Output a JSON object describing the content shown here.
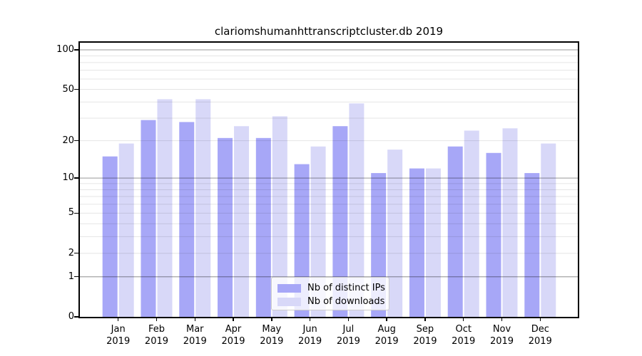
{
  "title": "clariomshumanhttranscriptcluster.db 2019",
  "chart_data": {
    "type": "bar",
    "title": "clariomshumanhttranscriptcluster.db 2019",
    "categories": [
      "Jan",
      "Feb",
      "Mar",
      "Apr",
      "May",
      "Jun",
      "Jul",
      "Aug",
      "Sep",
      "Oct",
      "Nov",
      "Dec"
    ],
    "year_label": "2019",
    "series": [
      {
        "name": "Nb of distinct IPs",
        "color": "#a7a7f7",
        "values": [
          15,
          29,
          28,
          21,
          21,
          13,
          26,
          11,
          12,
          18,
          16,
          11
        ]
      },
      {
        "name": "Nb of downloads",
        "color": "#d8d8f8",
        "values": [
          19,
          42,
          42,
          26,
          31,
          18,
          39,
          17,
          12,
          24,
          25,
          19
        ]
      }
    ],
    "yscale": "log10(1+y)",
    "yticks": [
      0,
      1,
      2,
      5,
      10,
      20,
      50,
      100
    ],
    "minor_gridlines": [
      2,
      3,
      4,
      5,
      6,
      7,
      8,
      9,
      20,
      30,
      40,
      50,
      60,
      70,
      80,
      90
    ],
    "major_gridlines": [
      1,
      10,
      100
    ],
    "ylim": [
      0,
      114
    ],
    "xlabel": "",
    "ylabel": "",
    "grid": "horizontal",
    "legend_position": "bottom-center"
  },
  "colors": {
    "bar_dark": "#a7a7f7",
    "bar_light": "#d8d8f8",
    "spine": "#000000",
    "background": "#ffffff"
  }
}
